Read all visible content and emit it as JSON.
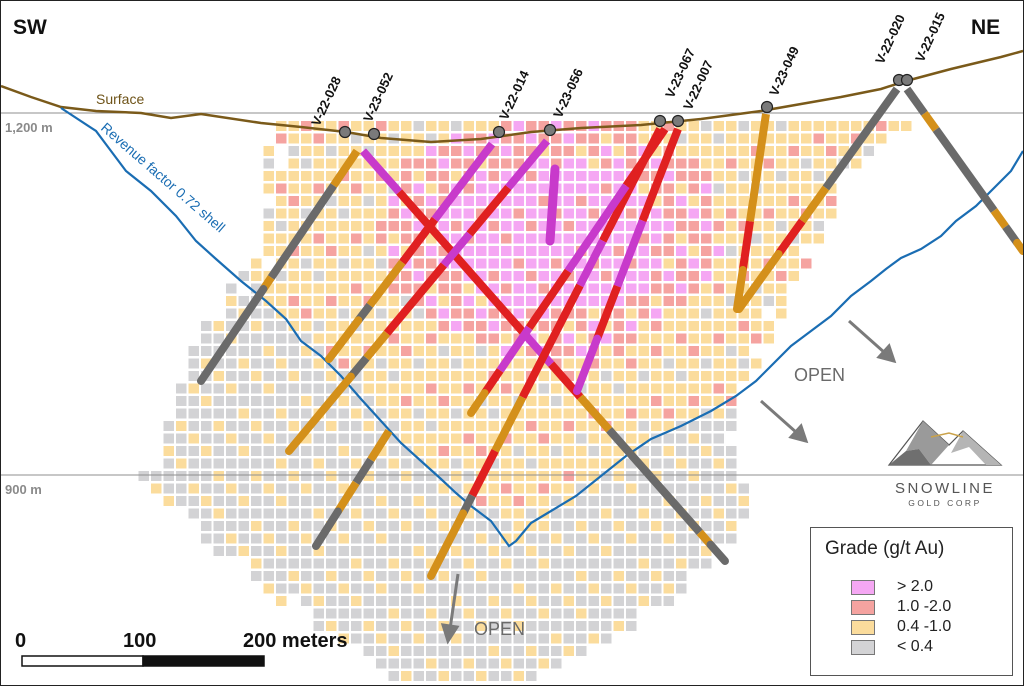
{
  "corners": {
    "left": "SW",
    "right": "NE"
  },
  "elevations": {
    "upper": "1,200 m",
    "lower": "900 m"
  },
  "surface_label": "Surface",
  "shell_label": "Revenue factor 0.72 shell",
  "open_labels": [
    "OPEN",
    "OPEN"
  ],
  "holes": [
    "V-22-028",
    "V-23-052",
    "V-22-014",
    "V-23-056",
    "V-23-067",
    "V-22-007",
    "V-23-049",
    "V-22-020",
    "V-22-015"
  ],
  "logo": {
    "name": "SNOWLINE",
    "sub": "GOLD CORP"
  },
  "scale": {
    "ticks": [
      "0",
      "100",
      "200 meters"
    ]
  },
  "legend": {
    "title": "Grade (g/t Au)",
    "items": [
      {
        "label": "> 2.0",
        "color": "#f5a7f3"
      },
      {
        "label": "1.0 -2.0",
        "color": "#f5a3a0"
      },
      {
        "label": "0.4 -1.0",
        "color": "#fbdc9c"
      },
      {
        "label": "< 0.4",
        "color": "#d3d3d5"
      }
    ]
  },
  "colors": {
    "surface": "#7a5a1a",
    "shell": "#1a6db3",
    "high": "#f5a7f3",
    "mid": "#f5a3a0",
    "low": "#fbdc9c",
    "waste": "#d3d3d5"
  }
}
